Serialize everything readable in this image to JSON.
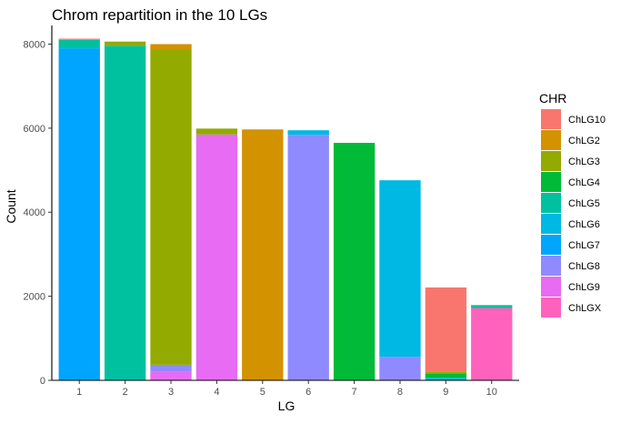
{
  "chart_data": {
    "type": "bar",
    "stacked": true,
    "title": "Chrom repartition in the 10 LGs",
    "xlabel": "LG",
    "ylabel": "Count",
    "categories": [
      "1",
      "2",
      "3",
      "4",
      "5",
      "6",
      "7",
      "8",
      "9",
      "10"
    ],
    "ylim": [
      0,
      8400
    ],
    "yticks": [
      0,
      2000,
      4000,
      6000,
      8000
    ],
    "grid": false,
    "legend": {
      "title": "CHR",
      "position": "right"
    },
    "series": [
      {
        "name": "ChLG10",
        "color": "#F8766D",
        "values": [
          30,
          0,
          0,
          0,
          0,
          0,
          0,
          0,
          2000,
          0
        ]
      },
      {
        "name": "ChLG2",
        "color": "#D39200",
        "values": [
          0,
          0,
          130,
          0,
          5970,
          0,
          0,
          0,
          0,
          0
        ]
      },
      {
        "name": "ChLG3",
        "color": "#93AA00",
        "values": [
          0,
          100,
          7500,
          140,
          0,
          0,
          0,
          0,
          50,
          0
        ]
      },
      {
        "name": "ChLG4",
        "color": "#00BA38",
        "values": [
          0,
          0,
          0,
          0,
          0,
          0,
          5650,
          0,
          100,
          0
        ]
      },
      {
        "name": "ChLG5",
        "color": "#00C19F",
        "values": [
          200,
          7960,
          0,
          0,
          0,
          0,
          0,
          0,
          0,
          70
        ]
      },
      {
        "name": "ChLG6",
        "color": "#00B9E3",
        "values": [
          0,
          0,
          0,
          0,
          0,
          110,
          0,
          4200,
          60,
          0
        ]
      },
      {
        "name": "ChLG7",
        "color": "#00A5FF",
        "values": [
          7900,
          0,
          0,
          0,
          0,
          0,
          0,
          0,
          0,
          0
        ]
      },
      {
        "name": "ChLG8",
        "color": "#8F8AFF",
        "values": [
          0,
          0,
          170,
          0,
          0,
          5840,
          0,
          560,
          0,
          0
        ]
      },
      {
        "name": "ChLG9",
        "color": "#E76BF3",
        "values": [
          0,
          0,
          200,
          5850,
          0,
          0,
          0,
          0,
          0,
          0
        ]
      },
      {
        "name": "ChLGX",
        "color": "#FF62BC",
        "values": [
          0,
          0,
          0,
          0,
          0,
          0,
          0,
          0,
          0,
          1720
        ]
      }
    ]
  }
}
